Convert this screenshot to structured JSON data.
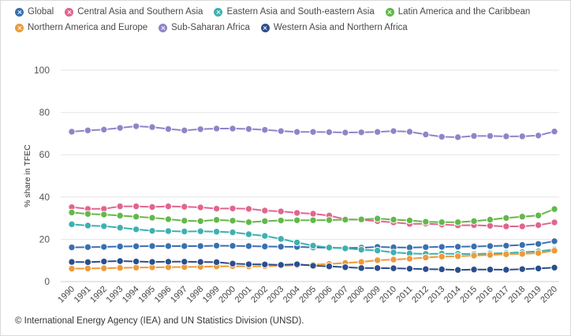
{
  "chart_data": {
    "type": "line",
    "ylabel": "% share in TFEC",
    "xlabel": "",
    "ylim": [
      0,
      100
    ],
    "yticks": [
      0,
      20,
      40,
      60,
      80,
      100
    ],
    "grid": true,
    "legend_position": "top",
    "x": [
      "1990",
      "1991",
      "1992",
      "1993",
      "1994",
      "1995",
      "1996",
      "1997",
      "1998",
      "1999",
      "2000",
      "2001",
      "2002",
      "2003",
      "2004",
      "2005",
      "2006",
      "2007",
      "2008",
      "2009",
      "2010",
      "2011",
      "2012",
      "2013",
      "2014",
      "2015",
      "2016",
      "2017",
      "2018",
      "2019",
      "2020"
    ],
    "series": [
      {
        "name": "Global",
        "color": "#3a6fb0",
        "values": [
          16.2,
          16.3,
          16.4,
          16.6,
          16.7,
          16.8,
          16.8,
          16.8,
          16.8,
          17.0,
          16.9,
          16.8,
          16.6,
          16.5,
          16.4,
          16.2,
          16.0,
          15.9,
          16.0,
          16.4,
          16.2,
          16.1,
          16.3,
          16.4,
          16.5,
          16.6,
          16.8,
          17.0,
          17.3,
          17.8,
          19.1
        ]
      },
      {
        "name": "Central Asia and Southern Asia",
        "color": "#e0668c",
        "values": [
          35.2,
          34.4,
          34.4,
          35.6,
          35.6,
          35.3,
          35.6,
          35.4,
          35.1,
          34.5,
          34.6,
          34.4,
          33.6,
          33.2,
          32.5,
          32.1,
          31.2,
          29.5,
          29.2,
          28.6,
          28.0,
          27.3,
          27.4,
          27.0,
          26.6,
          26.7,
          26.4,
          26.1,
          26.1,
          26.7,
          28.0
        ]
      },
      {
        "name": "Eastern Asia and South-eastern Asia",
        "color": "#3eb0b0",
        "values": [
          27.1,
          26.5,
          26.2,
          25.5,
          24.7,
          24.0,
          23.9,
          23.7,
          23.8,
          23.6,
          23.3,
          22.4,
          21.6,
          20.2,
          18.5,
          17.0,
          16.1,
          15.7,
          15.1,
          14.7,
          13.8,
          13.3,
          13.1,
          13.2,
          13.1,
          13.0,
          13.3,
          13.5,
          13.9,
          14.3,
          15.2
        ]
      },
      {
        "name": "Latin America and the Caribbean",
        "color": "#63b84a",
        "values": [
          32.7,
          32.0,
          31.7,
          31.2,
          30.7,
          30.2,
          29.5,
          28.8,
          28.6,
          29.2,
          28.8,
          28.1,
          28.6,
          28.9,
          29.0,
          29.0,
          29.1,
          29.3,
          29.4,
          29.8,
          29.3,
          28.9,
          28.3,
          28.1,
          28.1,
          28.6,
          29.3,
          30.1,
          30.7,
          31.3,
          34.3
        ]
      },
      {
        "name": "Northern America and Europe",
        "color": "#ee9a3a",
        "values": [
          6.1,
          6.2,
          6.3,
          6.5,
          6.6,
          6.7,
          6.8,
          6.9,
          7.0,
          7.2,
          7.3,
          7.2,
          7.3,
          7.5,
          7.7,
          8.0,
          8.3,
          8.8,
          9.3,
          10.1,
          10.4,
          10.8,
          11.4,
          11.8,
          12.0,
          12.3,
          12.6,
          12.9,
          13.1,
          13.5,
          14.6
        ]
      },
      {
        "name": "Sub-Saharan Africa",
        "color": "#8e85c8",
        "values": [
          70.9,
          71.5,
          71.9,
          72.7,
          73.5,
          73.1,
          72.2,
          71.5,
          72.1,
          72.4,
          72.4,
          72.2,
          71.8,
          71.2,
          70.8,
          70.8,
          70.7,
          70.5,
          70.6,
          70.8,
          71.2,
          70.9,
          69.6,
          68.5,
          68.3,
          68.9,
          68.9,
          68.7,
          68.7,
          69.1,
          71.0
        ]
      },
      {
        "name": "Western Asia and Northern Africa",
        "color": "#2b4e8c",
        "values": [
          9.3,
          9.2,
          9.5,
          9.7,
          9.5,
          9.3,
          9.4,
          9.4,
          9.3,
          9.2,
          8.5,
          8.2,
          8.1,
          7.9,
          8.2,
          7.5,
          7.2,
          6.8,
          6.4,
          6.4,
          6.3,
          6.1,
          5.9,
          5.8,
          5.5,
          5.7,
          5.7,
          5.6,
          5.9,
          6.2,
          6.6
        ]
      }
    ]
  },
  "source_note": "© International Energy Agency (IEA) and UN Statistics Division (UNSD)."
}
